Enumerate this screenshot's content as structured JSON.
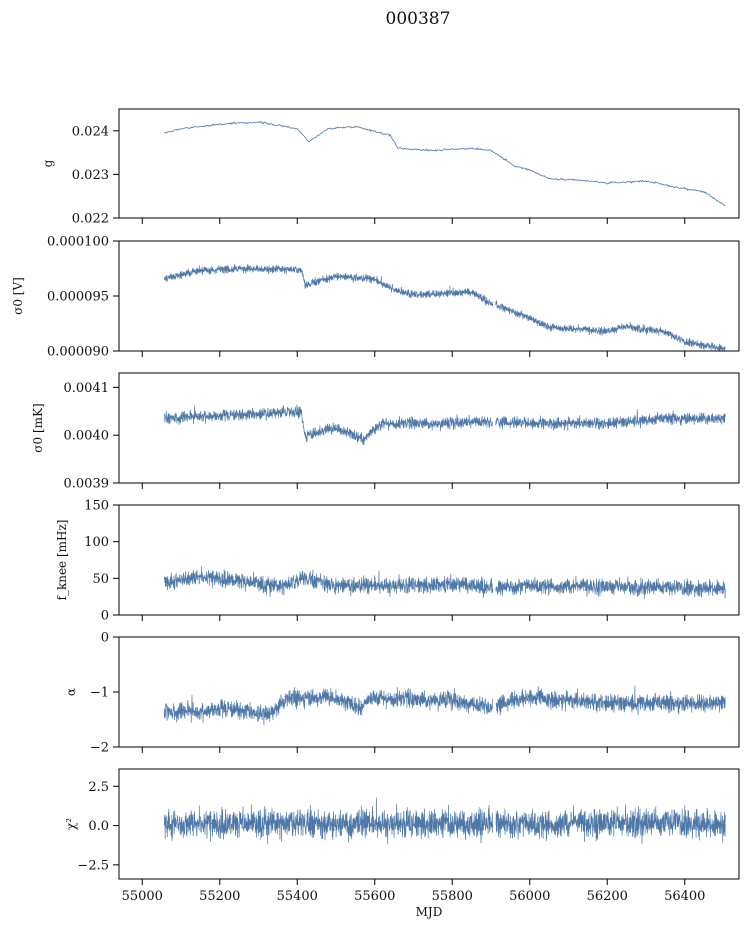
{
  "title": "000387",
  "colors": {
    "series": "#4e78a8",
    "axes": "#000000",
    "background": "#ffffff"
  },
  "chart_data": [
    {
      "type": "line",
      "id": "g",
      "ylabel": "g",
      "ylim": [
        0.022,
        0.0245
      ],
      "yticks": [
        0.022,
        0.023,
        0.024
      ],
      "yticklabels": [
        "0.022",
        "0.023",
        "0.024"
      ],
      "xlim": [
        54940,
        56540
      ],
      "noise": 2e-05,
      "trend": [
        [
          55057,
          0.02395
        ],
        [
          55100,
          0.02405
        ],
        [
          55200,
          0.02415
        ],
        [
          55300,
          0.0242
        ],
        [
          55400,
          0.02405
        ],
        [
          55430,
          0.02375
        ],
        [
          55480,
          0.02405
        ],
        [
          55550,
          0.0241
        ],
        [
          55640,
          0.0239
        ],
        [
          55660,
          0.0236
        ],
        [
          55750,
          0.02355
        ],
        [
          55850,
          0.0236
        ],
        [
          55900,
          0.02355
        ],
        [
          55960,
          0.0232
        ],
        [
          56000,
          0.0231
        ],
        [
          56050,
          0.0229
        ],
        [
          56150,
          0.02285
        ],
        [
          56200,
          0.0228
        ],
        [
          56300,
          0.02285
        ],
        [
          56380,
          0.0227
        ],
        [
          56450,
          0.0226
        ],
        [
          56505,
          0.02228
        ]
      ]
    },
    {
      "type": "line",
      "id": "sigma0_V",
      "ylabel": "σ0 [V]",
      "ylim": [
        9e-05,
        0.0001
      ],
      "yticks": [
        9e-05,
        9.5e-05,
        0.0001
      ],
      "yticklabels": [
        "0.000090",
        "0.000095",
        "0.000100"
      ],
      "xlim": [
        54940,
        56540
      ],
      "noise": 3.5e-07,
      "trend": [
        [
          55057,
          9.66e-05
        ],
        [
          55150,
          9.73e-05
        ],
        [
          55250,
          9.75e-05
        ],
        [
          55410,
          9.74e-05
        ],
        [
          55420,
          9.6e-05
        ],
        [
          55500,
          9.68e-05
        ],
        [
          55600,
          9.65e-05
        ],
        [
          55650,
          9.55e-05
        ],
        [
          55700,
          9.51e-05
        ],
        [
          55820,
          9.53e-05
        ],
        [
          55850,
          9.54e-05
        ],
        [
          55900,
          9.43e-05
        ],
        [
          55980,
          9.33e-05
        ],
        [
          56050,
          9.22e-05
        ],
        [
          56150,
          9.19e-05
        ],
        [
          56200,
          9.18e-05
        ],
        [
          56250,
          9.22e-05
        ],
        [
          56350,
          9.17e-05
        ],
        [
          56400,
          9.08e-05
        ],
        [
          56505,
          9.02e-05
        ]
      ]
    },
    {
      "type": "line",
      "id": "sigma0_mK",
      "ylabel": "σ0 [mK]",
      "ylim": [
        0.0039,
        0.00413
      ],
      "yticks": [
        0.0039,
        0.004,
        0.0041
      ],
      "yticklabels": [
        "0.0039",
        "0.0040",
        "0.0041"
      ],
      "xlim": [
        54940,
        56540
      ],
      "noise": 1.2e-05,
      "trend": [
        [
          55057,
          0.004035
        ],
        [
          55150,
          0.00404
        ],
        [
          55300,
          0.004045
        ],
        [
          55410,
          0.00405
        ],
        [
          55420,
          0.004
        ],
        [
          55500,
          0.004015
        ],
        [
          55570,
          0.00399
        ],
        [
          55620,
          0.004025
        ],
        [
          55800,
          0.004025
        ],
        [
          55850,
          0.00403
        ],
        [
          56000,
          0.004025
        ],
        [
          56200,
          0.004025
        ],
        [
          56350,
          0.004035
        ],
        [
          56505,
          0.004035
        ]
      ]
    },
    {
      "type": "line",
      "id": "f_knee",
      "ylabel": "f_knee [mHz]",
      "ylim": [
        0,
        150
      ],
      "yticks": [
        0,
        50,
        100,
        150
      ],
      "yticklabels": [
        "0",
        "50",
        "100",
        "150"
      ],
      "xlim": [
        54940,
        56540
      ],
      "noise": 11,
      "trend": [
        [
          55057,
          45
        ],
        [
          55150,
          52
        ],
        [
          55250,
          47
        ],
        [
          55300,
          43
        ],
        [
          55350,
          38
        ],
        [
          55420,
          50
        ],
        [
          55500,
          40
        ],
        [
          55700,
          40
        ],
        [
          55850,
          42
        ],
        [
          55900,
          36
        ],
        [
          56000,
          40
        ],
        [
          56200,
          38
        ],
        [
          56400,
          36
        ],
        [
          56505,
          37
        ]
      ]
    },
    {
      "type": "line",
      "id": "alpha",
      "ylabel": "α",
      "ylim": [
        -2,
        0
      ],
      "yticks": [
        -2,
        -1,
        0
      ],
      "yticklabels": [
        "−2",
        "−1",
        "0"
      ],
      "xlim": [
        54940,
        56540
      ],
      "noise": 0.16,
      "trend": [
        [
          55057,
          -1.35
        ],
        [
          55150,
          -1.35
        ],
        [
          55200,
          -1.28
        ],
        [
          55330,
          -1.4
        ],
        [
          55380,
          -1.1
        ],
        [
          55500,
          -1.1
        ],
        [
          55560,
          -1.3
        ],
        [
          55600,
          -1.1
        ],
        [
          55800,
          -1.15
        ],
        [
          55900,
          -1.25
        ],
        [
          56000,
          -1.1
        ],
        [
          56200,
          -1.2
        ],
        [
          56505,
          -1.2
        ]
      ]
    },
    {
      "type": "line",
      "id": "chi2",
      "ylabel": "χ²",
      "ylim": [
        -3.4,
        3.6
      ],
      "yticks": [
        -2.5,
        0,
        2.5
      ],
      "yticklabels": [
        "−2.5",
        "0.0",
        "2.5"
      ],
      "xlim": [
        54940,
        56540
      ],
      "xticks": [
        55000,
        55200,
        55400,
        55600,
        55800,
        56000,
        56200,
        56400
      ],
      "xticklabels": [
        "55000",
        "55200",
        "55400",
        "55600",
        "55800",
        "56000",
        "56200",
        "56400"
      ],
      "xlabel": "MJD",
      "noise": 0.9,
      "trend": [
        [
          55057,
          0.1
        ],
        [
          56505,
          0.1
        ]
      ]
    }
  ]
}
